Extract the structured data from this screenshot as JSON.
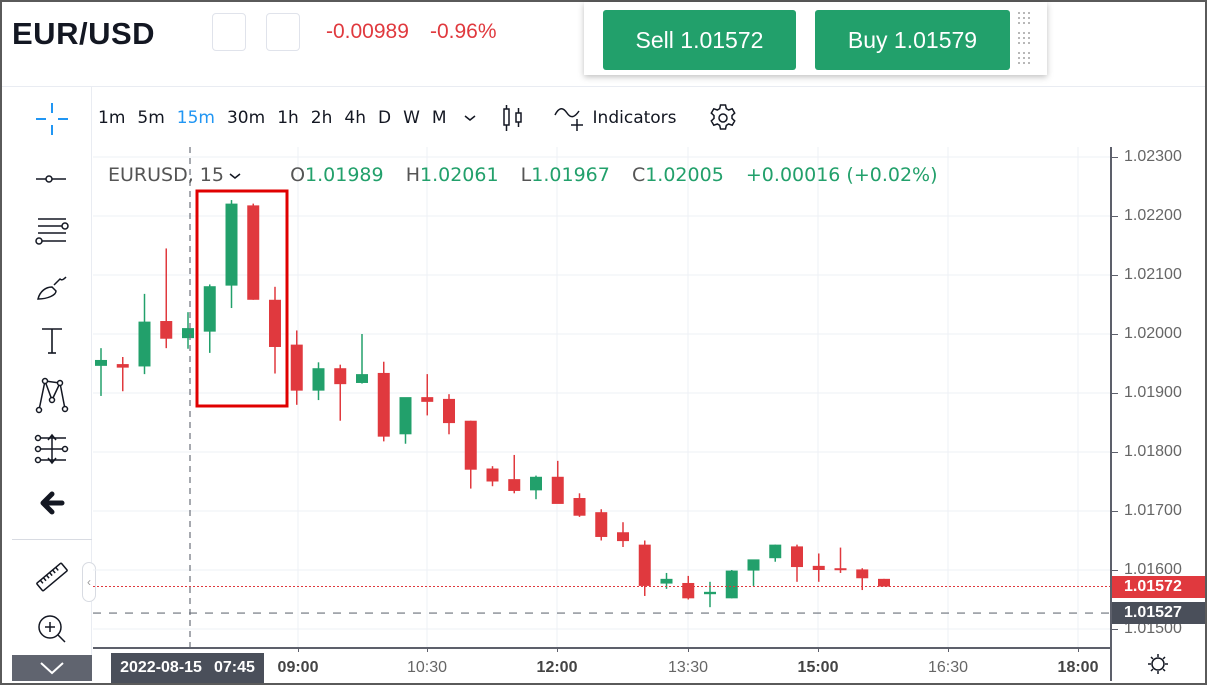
{
  "header": {
    "symbol": "EUR/USD",
    "change_abs": "-0.00989",
    "change_pct": "-0.96%",
    "colors": {
      "down": "#e0393e",
      "up": "#22a06b",
      "accent": "#2196f3"
    }
  },
  "trade_panel": {
    "sell_label": "Sell 1.01572",
    "buy_label": "Buy 1.01579"
  },
  "toolbar": {
    "timeframes": [
      "1m",
      "5m",
      "15m",
      "30m",
      "1h",
      "2h",
      "4h",
      "D",
      "W",
      "M"
    ],
    "active_timeframe": "15m",
    "indicators_label": "Indicators"
  },
  "sidebar": {
    "tools": [
      "crosshair-icon",
      "trend-line-icon",
      "fib-retracement-icon",
      "brush-icon",
      "text-icon",
      "pattern-icon",
      "measure-projection-icon",
      "back-arrow-icon",
      "ruler-icon",
      "zoom-in-icon"
    ],
    "collapse_icon": "chevron-down-icon"
  },
  "legend": {
    "symbol": "EURUSD, 15",
    "open_label": "O",
    "open": "1.01989",
    "high_label": "H",
    "high": "1.02061",
    "low_label": "L",
    "low": "1.01967",
    "close_label": "C",
    "close": "1.02005",
    "change": "+0.00016 (+0.02%)"
  },
  "price_axis": {
    "labels": [
      "1.02300",
      "1.02200",
      "1.02100",
      "1.02000",
      "1.01900",
      "1.01800",
      "1.01700",
      "1.01600",
      "1.01500"
    ],
    "last_price_tag": "1.01572",
    "crosshair_price_tag": "1.01527"
  },
  "time_axis": {
    "crosshair_date": "2022-08-15",
    "crosshair_time": "07:45",
    "labels": [
      {
        "text": "09:00",
        "bold": true
      },
      {
        "text": "10:30",
        "bold": false
      },
      {
        "text": "12:00",
        "bold": true
      },
      {
        "text": "13:30",
        "bold": false
      },
      {
        "text": "15:00",
        "bold": true
      },
      {
        "text": "16:30",
        "bold": false
      },
      {
        "text": "18:00",
        "bold": true
      }
    ]
  },
  "chart_data": {
    "type": "candlestick",
    "title": "EURUSD, 15",
    "ylim": [
      1.0148,
      1.0233
    ],
    "ytick_labels": [
      "1.02300",
      "1.02200",
      "1.02100",
      "1.02000",
      "1.01900",
      "1.01800",
      "1.01700",
      "1.01600",
      "1.01500"
    ],
    "xtick_labels": [
      "09:00",
      "10:30",
      "12:00",
      "13:30",
      "15:00",
      "16:30",
      "18:00"
    ],
    "highlight_box": {
      "from_index": 5,
      "to_index": 8,
      "color": "#e00000"
    },
    "last_price": 1.01572,
    "crosshair": {
      "price": 1.01527,
      "time": "2022-08-15 07:45"
    },
    "candles": [
      {
        "o": 1.01946,
        "h": 1.01976,
        "l": 1.01895,
        "c": 1.01956
      },
      {
        "o": 1.01949,
        "h": 1.01961,
        "l": 1.01903,
        "c": 1.01943
      },
      {
        "o": 1.01945,
        "h": 1.02068,
        "l": 1.01932,
        "c": 1.02021
      },
      {
        "o": 1.02022,
        "h": 1.02145,
        "l": 1.01976,
        "c": 1.01992
      },
      {
        "o": 1.01993,
        "h": 1.02037,
        "l": 1.01975,
        "c": 1.0201
      },
      {
        "o": 1.02004,
        "h": 1.02084,
        "l": 1.01968,
        "c": 1.02081
      },
      {
        "o": 1.02082,
        "h": 1.02227,
        "l": 1.02044,
        "c": 1.02221
      },
      {
        "o": 1.02218,
        "h": 1.02221,
        "l": 1.02058,
        "c": 1.02058
      },
      {
        "o": 1.02058,
        "h": 1.0208,
        "l": 1.01933,
        "c": 1.01978
      },
      {
        "o": 1.01982,
        "h": 1.02006,
        "l": 1.0188,
        "c": 1.01904
      },
      {
        "o": 1.01904,
        "h": 1.01952,
        "l": 1.01888,
        "c": 1.01942
      },
      {
        "o": 1.01942,
        "h": 1.01948,
        "l": 1.01853,
        "c": 1.01915
      },
      {
        "o": 1.01917,
        "h": 1.02,
        "l": 1.01916,
        "c": 1.01932
      },
      {
        "o": 1.01934,
        "h": 1.01953,
        "l": 1.01818,
        "c": 1.01826
      },
      {
        "o": 1.0183,
        "h": 1.01891,
        "l": 1.01814,
        "c": 1.01893
      },
      {
        "o": 1.01893,
        "h": 1.01932,
        "l": 1.01862,
        "c": 1.01885
      },
      {
        "o": 1.0189,
        "h": 1.01898,
        "l": 1.0183,
        "c": 1.01849
      },
      {
        "o": 1.01853,
        "h": 1.01853,
        "l": 1.01738,
        "c": 1.0177
      },
      {
        "o": 1.01772,
        "h": 1.01776,
        "l": 1.01742,
        "c": 1.0175
      },
      {
        "o": 1.01754,
        "h": 1.01795,
        "l": 1.0173,
        "c": 1.01734
      },
      {
        "o": 1.01735,
        "h": 1.0176,
        "l": 1.0172,
        "c": 1.01758
      },
      {
        "o": 1.01758,
        "h": 1.01785,
        "l": 1.01715,
        "c": 1.01712
      },
      {
        "o": 1.01722,
        "h": 1.0173,
        "l": 1.0169,
        "c": 1.01692
      },
      {
        "o": 1.01698,
        "h": 1.01703,
        "l": 1.0165,
        "c": 1.01656
      },
      {
        "o": 1.01664,
        "h": 1.01681,
        "l": 1.01639,
        "c": 1.01649
      },
      {
        "o": 1.01643,
        "h": 1.0165,
        "l": 1.01556,
        "c": 1.01573
      },
      {
        "o": 1.01577,
        "h": 1.01595,
        "l": 1.01568,
        "c": 1.01585
      },
      {
        "o": 1.01578,
        "h": 1.0159,
        "l": 1.0155,
        "c": 1.01552
      },
      {
        "o": 1.01559,
        "h": 1.0158,
        "l": 1.01537,
        "c": 1.01563
      },
      {
        "o": 1.01552,
        "h": 1.016,
        "l": 1.01552,
        "c": 1.01599
      },
      {
        "o": 1.01599,
        "h": 1.01614,
        "l": 1.01573,
        "c": 1.01618
      },
      {
        "o": 1.0162,
        "h": 1.01643,
        "l": 1.01614,
        "c": 1.01643
      },
      {
        "o": 1.0164,
        "h": 1.01643,
        "l": 1.0158,
        "c": 1.01605
      },
      {
        "o": 1.01607,
        "h": 1.01628,
        "l": 1.0158,
        "c": 1.016
      },
      {
        "o": 1.01603,
        "h": 1.01638,
        "l": 1.01595,
        "c": 1.01601
      },
      {
        "o": 1.01601,
        "h": 1.01603,
        "l": 1.01566,
        "c": 1.01586
      },
      {
        "o": 1.01585,
        "h": 1.01585,
        "l": 1.01572,
        "c": 1.01572
      }
    ]
  }
}
